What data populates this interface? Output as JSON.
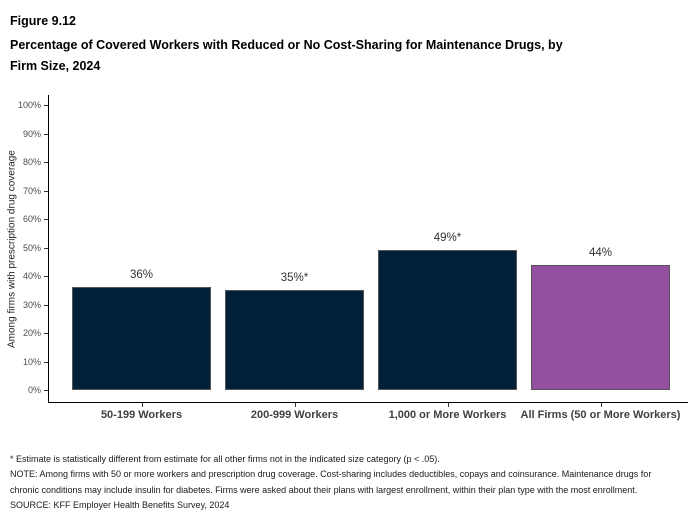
{
  "figure": {
    "label": "Figure 9.12",
    "title": "Percentage of Covered Workers with Reduced or No Cost-Sharing for Maintenance Drugs, by Firm Size, 2024"
  },
  "chart_data": {
    "type": "bar",
    "categories": [
      "50-199 Workers",
      "200-999 Workers",
      "1,000 or More Workers",
      "All Firms (50 or More Workers)"
    ],
    "values": [
      36,
      35,
      49,
      44
    ],
    "value_labels": [
      "36%",
      "35%*",
      "49%*",
      "44%"
    ],
    "bar_colors": [
      "#022138",
      "#022138",
      "#022138",
      "#954FA0"
    ],
    "title": "Percentage of Covered Workers with Reduced or No Cost-Sharing for Maintenance Drugs, by Firm Size, 2024",
    "xlabel": "",
    "ylabel": "Among firms with prescription drug coverage",
    "ylim": [
      0,
      100
    ],
    "ytick_step": 10,
    "ytick_suffix": "%",
    "grid": false,
    "legend": false
  },
  "footnotes": {
    "asterisk": "* Estimate is statistically different from estimate for all other firms not in the indicated size category (p < .05).",
    "note": "NOTE: Among firms with 50 or more workers and prescription drug coverage. Cost-sharing includes deductibles, copays and coinsurance. Maintenance drugs for chronic conditions may include insulin for diabetes. Firms were asked about their plans with largest enrollment, within their plan type with the most enrollment.",
    "source": "SOURCE: KFF Employer Health Benefits Survey, 2024"
  }
}
